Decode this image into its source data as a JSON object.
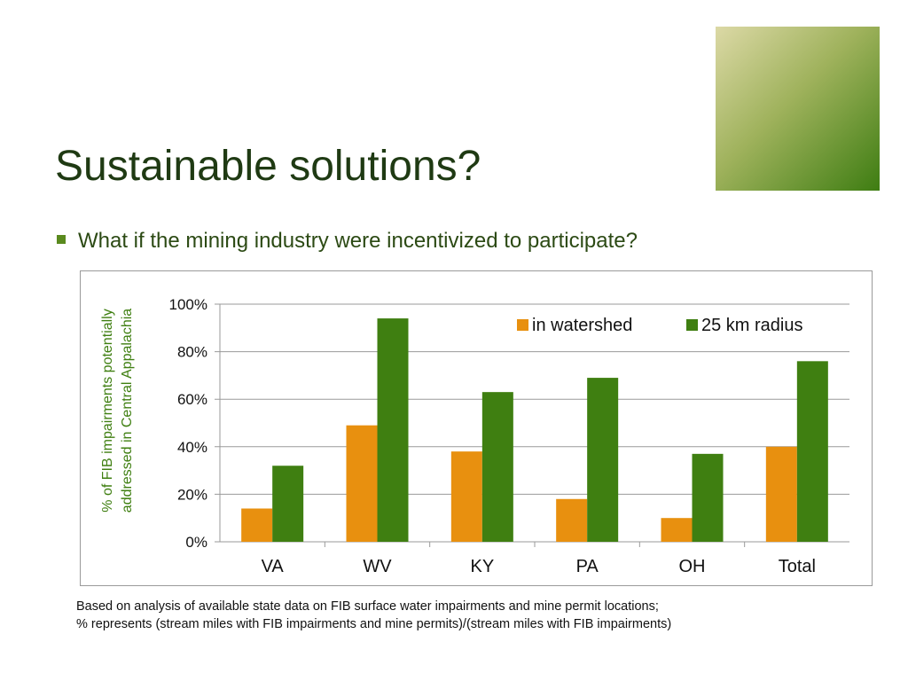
{
  "slide": {
    "title": "Sustainable solutions?",
    "bullet": "What if the mining industry were incentivized to participate?",
    "footnote": [
      "Based on analysis of available state data on FIB surface water impairments and mine permit locations;",
      "% represents (stream miles with FIB impairments and mine permits)/(stream miles with FIB impairments)"
    ]
  },
  "colors": {
    "title": "#1f3a13",
    "accent": "#5a8a1e",
    "in_watershed": "#e8900f",
    "radius_25km": "#3f7f11"
  },
  "chart_data": {
    "type": "bar",
    "title": "",
    "xlabel": "",
    "ylabel": "% of FIB impairments potentially addressed in Central Appalachia",
    "ylabel_lines": [
      "% of FIB impairments potentially",
      "addressed in Central Appalachia"
    ],
    "categories": [
      "VA",
      "WV",
      "KY",
      "PA",
      "OH",
      "Total"
    ],
    "series": [
      {
        "name": "in watershed",
        "values": [
          14,
          49,
          38,
          18,
          10,
          40
        ]
      },
      {
        "name": "25 km radius",
        "values": [
          32,
          94,
          63,
          69,
          37,
          76
        ]
      }
    ],
    "ylim": [
      0,
      100
    ],
    "yticks": [
      "0%",
      "20%",
      "40%",
      "60%",
      "80%",
      "100%"
    ],
    "grid": true,
    "legend": "top-right"
  }
}
